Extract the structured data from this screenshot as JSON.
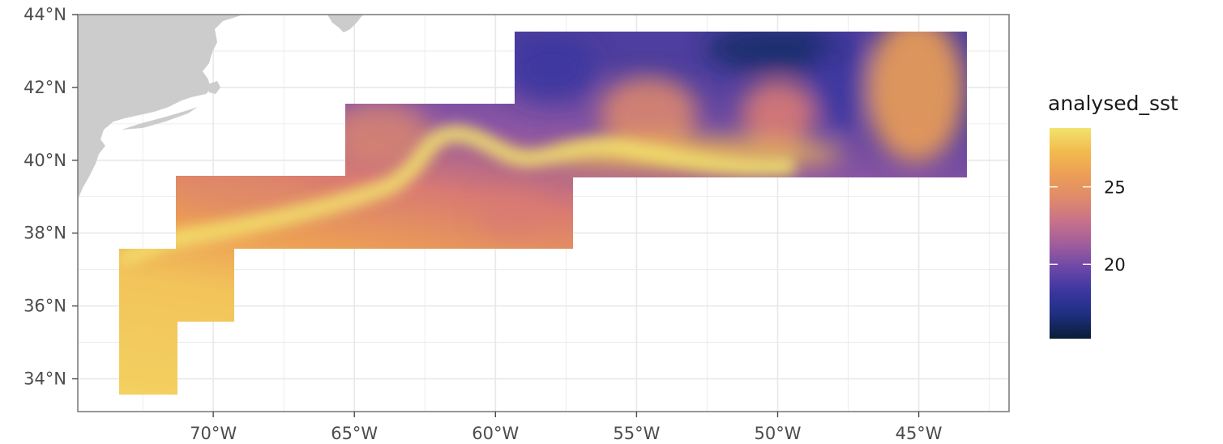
{
  "map": {
    "lon_range": [
      -74.8,
      -41.8
    ],
    "lat_range": [
      33.1,
      44.0
    ],
    "colors": {
      "land": "#cccccc",
      "grid": "#e8e8e8",
      "frame": "#7f7f7f",
      "background": "#ffffff"
    },
    "lon_ticks": [
      {
        "value": -70,
        "label": "70°W"
      },
      {
        "value": -65,
        "label": "65°W"
      },
      {
        "value": -60,
        "label": "60°W"
      },
      {
        "value": -55,
        "label": "55°W"
      },
      {
        "value": -50,
        "label": "50°W"
      },
      {
        "value": -45,
        "label": "45°W"
      }
    ],
    "lat_ticks": [
      {
        "value": 44,
        "label": "44°N"
      },
      {
        "value": 42,
        "label": "42°N"
      },
      {
        "value": 40,
        "label": "40°N"
      },
      {
        "value": 38,
        "label": "38°N"
      },
      {
        "value": 36,
        "label": "36°N"
      },
      {
        "value": 34,
        "label": "34°N"
      }
    ],
    "sst_tiles": [
      {
        "lon": [
          -73.4,
          -71.4
        ],
        "lat": [
          33.5,
          37.5
        ]
      },
      {
        "lon": [
          -71.4,
          -69.4
        ],
        "lat": [
          35.5,
          37.5
        ]
      },
      {
        "lon": [
          -71.4,
          -57.4
        ],
        "lat": [
          37.5,
          39.5
        ]
      },
      {
        "lon": [
          -65.4,
          -57.4
        ],
        "lat": [
          39.5,
          41.5
        ]
      },
      {
        "lon": [
          -59.4,
          -43.6
        ],
        "lat": [
          39.5,
          43.5
        ]
      }
    ]
  },
  "legend": {
    "title": "analysed_sst",
    "range": [
      15.2,
      28.8
    ],
    "breaks": [
      {
        "value": 25,
        "label": "25"
      },
      {
        "value": 20,
        "label": "20"
      }
    ],
    "colors": [
      "#0b1d34",
      "#1d2f7e",
      "#3a36a0",
      "#6a47a8",
      "#9e5d9c",
      "#c8718a",
      "#e08a6b",
      "#ec9e55",
      "#f2bb4e",
      "#f2e36d"
    ]
  }
}
